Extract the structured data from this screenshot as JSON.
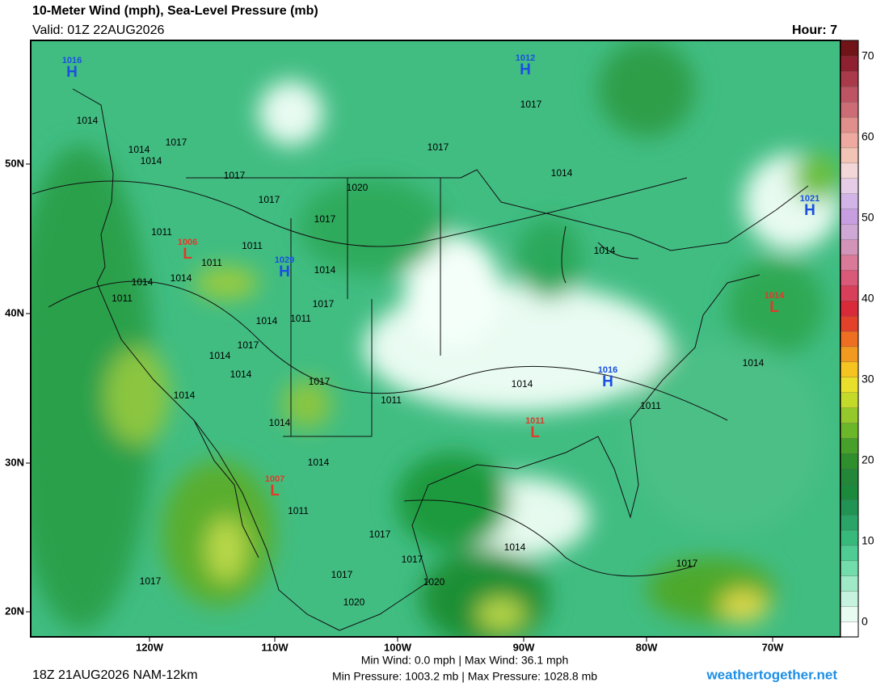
{
  "header": {
    "title": "10-Meter Wind (mph), Sea-Level Pressure (mb)",
    "valid": "Valid: 01Z 22AUG2026",
    "hour": "Hour: 7"
  },
  "colorbar": {
    "labels": [
      "0",
      "10",
      "20",
      "30",
      "40",
      "50",
      "60",
      "70"
    ]
  },
  "latitude_labels": [
    "50N",
    "40N",
    "30N",
    "20N"
  ],
  "longitude_labels": [
    "120W",
    "110W",
    "100W",
    "90W",
    "80W",
    "70W"
  ],
  "pressure_centers": [
    {
      "label": "H",
      "value": "1016",
      "color": "#1a4fe0"
    },
    {
      "label": "H",
      "value": "1012",
      "color": "#1a4fe0"
    },
    {
      "label": "H",
      "value": "1021",
      "color": "#1a4fe0"
    },
    {
      "label": "H",
      "value": "1029",
      "color": "#1a4fe0"
    },
    {
      "label": "H",
      "value": "1016",
      "color": "#1a4fe0"
    },
    {
      "label": "L",
      "value": "1006",
      "color": "#e03a2a"
    },
    {
      "label": "L",
      "value": "1014",
      "color": "#e03a2a"
    },
    {
      "label": "L",
      "value": "1011",
      "color": "#e03a2a"
    },
    {
      "label": "L",
      "value": "1007",
      "color": "#e03a2a"
    }
  ],
  "isobar_labels": [
    "1014",
    "1014",
    "1014",
    "1017",
    "1017",
    "1017",
    "1017",
    "1011",
    "1011",
    "1014",
    "1014",
    "1011",
    "1011",
    "1020",
    "1017",
    "1014",
    "1017",
    "1014",
    "1011",
    "1014",
    "1014",
    "1017",
    "1011",
    "1014",
    "1014",
    "1017",
    "1014",
    "1014",
    "1017",
    "1017",
    "1011",
    "1017",
    "1020",
    "1020",
    "1017",
    "1014",
    "1017",
    "1014",
    "1011",
    "1017",
    "1014",
    "1014"
  ],
  "footer": {
    "run": "18Z 21AUG2026 NAM-12km",
    "wind_stats": "Min Wind:  0.0 mph | Max Wind:  36.1 mph",
    "pressure_stats": "Min Pressure: 1003.2 mb | Max Pressure: 1028.8 mb",
    "site": "weathertogether.net"
  }
}
